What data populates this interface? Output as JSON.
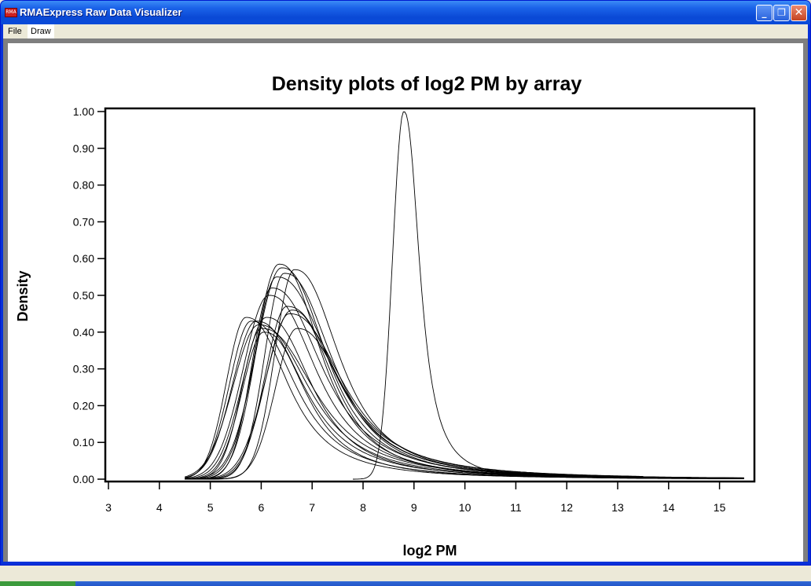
{
  "window": {
    "title": "RMAExpress Raw Data Visualizer",
    "app_icon_label": "RMA",
    "minimize_label": "_",
    "restore_label": "❐",
    "close_label": "✕"
  },
  "menu": {
    "items": [
      {
        "label": "File"
      },
      {
        "label": "Draw",
        "active": true
      }
    ]
  },
  "chart_data": {
    "type": "line",
    "title": "Density plots of log2 PM by array",
    "xlabel": "log2 PM",
    "ylabel": "Density",
    "xlim": [
      3,
      15.6
    ],
    "ylim": [
      0,
      1.0
    ],
    "xticks": [
      3,
      4,
      5,
      6,
      7,
      8,
      9,
      10,
      11,
      12,
      13,
      14,
      15
    ],
    "xtick_labels": [
      "3",
      "4",
      "5",
      "6",
      "7",
      "8",
      "9",
      "10",
      "11",
      "12",
      "13",
      "14",
      "15"
    ],
    "yticks": [
      0,
      0.1,
      0.2,
      0.3,
      0.4,
      0.5,
      0.6,
      0.7,
      0.8,
      0.9,
      1.0
    ],
    "ytick_labels": [
      "0.00",
      "0.10",
      "0.20",
      "0.30",
      "0.40",
      "0.50",
      "0.60",
      "0.70",
      "0.80",
      "0.90",
      "1.00"
    ],
    "line_color": "#000000",
    "grid": false,
    "legend": "none",
    "series": [
      {
        "peak_x": 5.7,
        "peak_y": 0.44
      },
      {
        "peak_x": 5.8,
        "peak_y": 0.43
      },
      {
        "peak_x": 5.9,
        "peak_y": 0.43
      },
      {
        "peak_x": 5.95,
        "peak_y": 0.42
      },
      {
        "peak_x": 6.0,
        "peak_y": 0.41
      },
      {
        "peak_x": 6.05,
        "peak_y": 0.4
      },
      {
        "peak_x": 6.1,
        "peak_y": 0.44
      },
      {
        "peak_x": 6.15,
        "peak_y": 0.5
      },
      {
        "peak_x": 6.2,
        "peak_y": 0.52
      },
      {
        "peak_x": 6.3,
        "peak_y": 0.55
      },
      {
        "peak_x": 6.35,
        "peak_y": 0.585
      },
      {
        "peak_x": 6.4,
        "peak_y": 0.575
      },
      {
        "peak_x": 6.45,
        "peak_y": 0.56
      },
      {
        "peak_x": 6.5,
        "peak_y": 0.47
      },
      {
        "peak_x": 6.55,
        "peak_y": 0.45
      },
      {
        "peak_x": 6.6,
        "peak_y": 0.46
      },
      {
        "peak_x": 6.65,
        "peak_y": 0.57
      },
      {
        "peak_x": 6.7,
        "peak_y": 0.41
      },
      {
        "peak_x": 8.8,
        "peak_y": 1.0
      }
    ]
  }
}
